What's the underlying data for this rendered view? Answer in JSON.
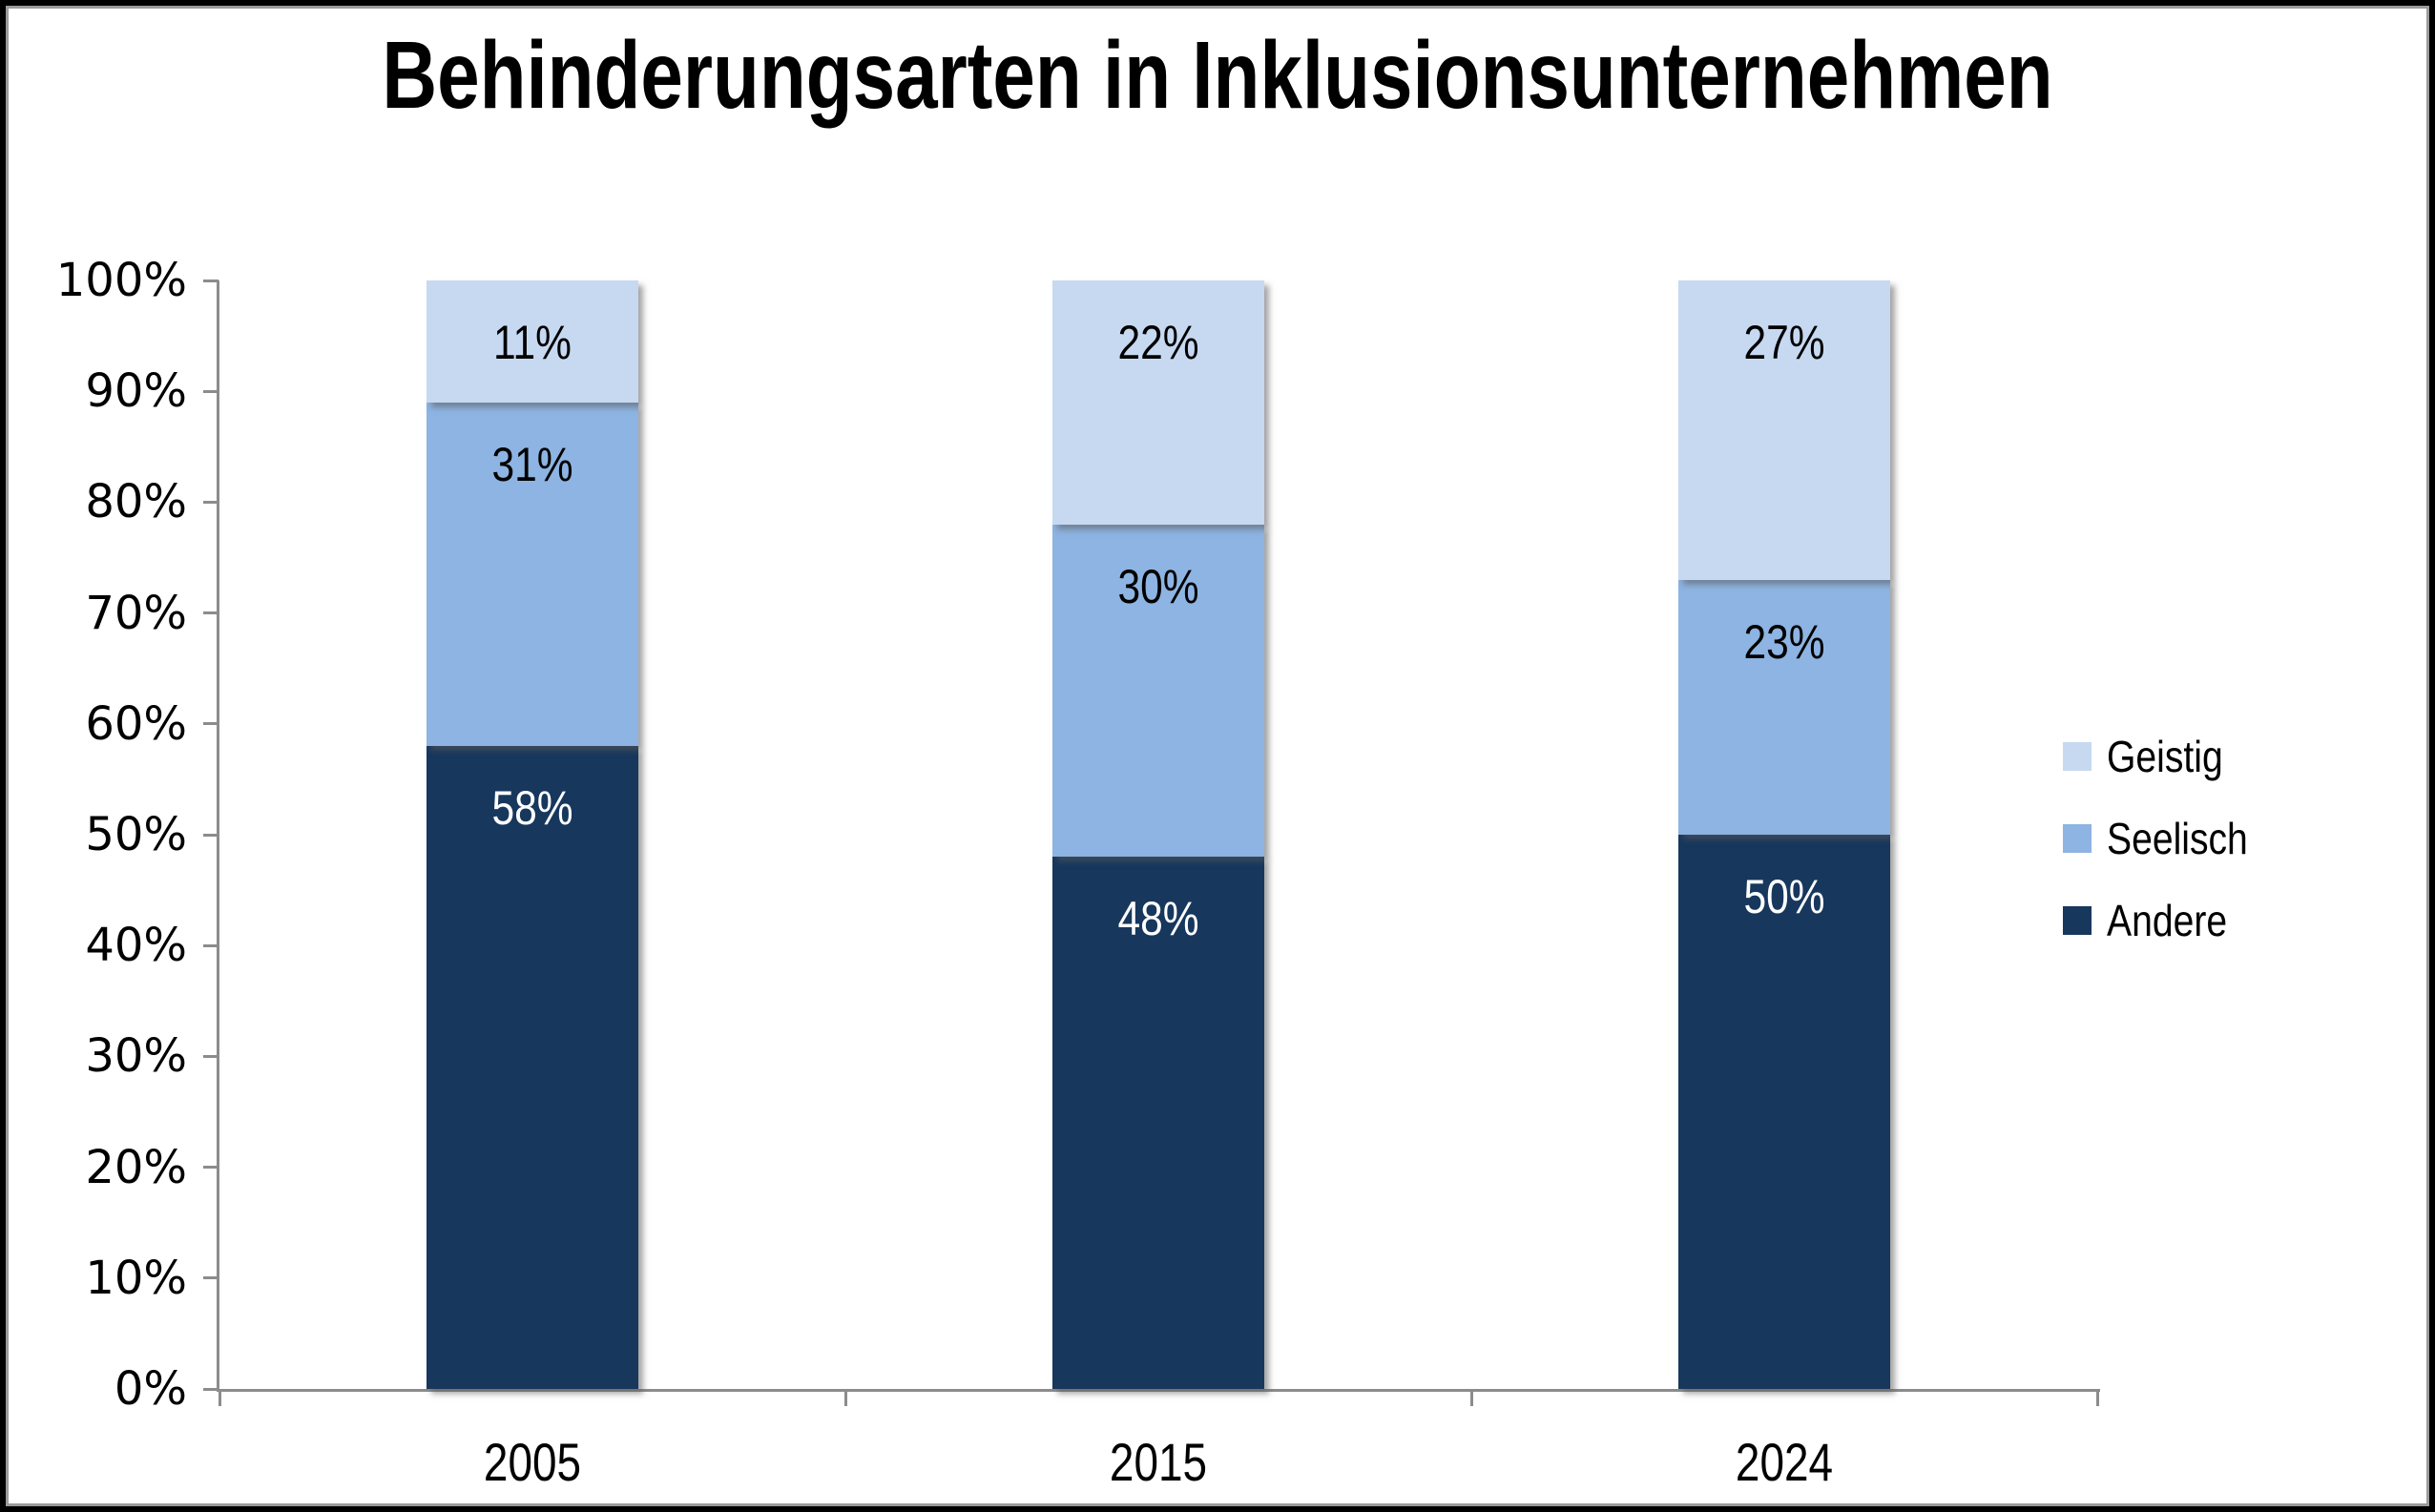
{
  "chart_data": {
    "type": "bar",
    "stacked": true,
    "title": "Behinderungsarten in Inklusionsunternehmen",
    "categories": [
      "2005",
      "2015",
      "2024"
    ],
    "series": [
      {
        "name": "Andere",
        "color": "#17375D",
        "label_color": "#FFFFFF",
        "values": [
          58,
          48,
          50
        ]
      },
      {
        "name": "Seelisch",
        "color": "#8DB4E2",
        "label_color": "#000000",
        "values": [
          31,
          30,
          23
        ]
      },
      {
        "name": "Geistig",
        "color": "#C6D9F1",
        "label_color": "#000000",
        "values": [
          11,
          22,
          27
        ]
      }
    ],
    "xlabel": "",
    "ylabel": "",
    "ylim": [
      0,
      100
    ],
    "y_ticks": [
      "0%",
      "10%",
      "20%",
      "30%",
      "40%",
      "50%",
      "60%",
      "70%",
      "80%",
      "90%",
      "100%"
    ],
    "data_label_format": "percent-inside-top",
    "grid": false,
    "legend_position": "right",
    "axis_color": "#8C8C8C"
  },
  "legend": {
    "items": [
      {
        "label": "Geistig",
        "color": "#C6D9F1"
      },
      {
        "label": "Seelisch",
        "color": "#8DB4E2"
      },
      {
        "label": "Andere",
        "color": "#17375D"
      }
    ]
  }
}
